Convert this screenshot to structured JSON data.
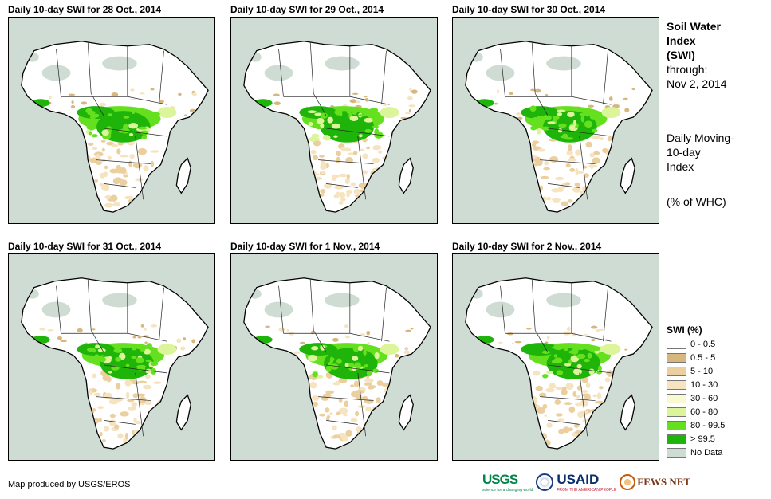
{
  "panels": [
    {
      "title": "Daily 10-day  SWI for 28 Oct., 2014"
    },
    {
      "title": "Daily 10-day  SWI for 29 Oct., 2014"
    },
    {
      "title": "Daily 10-day  SWI for 30 Oct., 2014"
    },
    {
      "title": "Daily 10-day  SWI for 31 Oct., 2014"
    },
    {
      "title": "Daily 10-day  SWI for 1 Nov., 2014"
    },
    {
      "title": "Daily 10-day  SWI for 2 Nov., 2014"
    }
  ],
  "sidebar": {
    "title_line1": "Soil Water",
    "title_line2": "Index",
    "title_line3": "(SWI)",
    "through_label": "through:",
    "through_date": "Nov 2, 2014",
    "desc_line1": "Daily Moving-",
    "desc_line2": "10-day",
    "desc_line3": "Index",
    "units": "(% of WHC)"
  },
  "legend": {
    "title": "SWI (%)",
    "items": [
      {
        "label": "0 - 0.5",
        "color": "#ffffff"
      },
      {
        "label": "0.5 - 5",
        "color": "#d6b77e"
      },
      {
        "label": "5 - 10",
        "color": "#ebcf9f"
      },
      {
        "label": "10 - 30",
        "color": "#f6e3c0"
      },
      {
        "label": "30 - 60",
        "color": "#fafad2"
      },
      {
        "label": "60 - 80",
        "color": "#dcf59b"
      },
      {
        "label": "80 - 99.5",
        "color": "#64e01e"
      },
      {
        "label": "> 99.5",
        "color": "#1eb40a"
      },
      {
        "label": "No Data",
        "color": "#cfdcd4"
      }
    ]
  },
  "footer": {
    "credit": "Map produced by USGS/EROS",
    "usgs": "USGS",
    "usgs_tagline": "science for a changing world",
    "usaid": "USAID",
    "usaid_tagline": "FROM THE AMERICAN PEOPLE",
    "fews": "FEWS NET"
  }
}
